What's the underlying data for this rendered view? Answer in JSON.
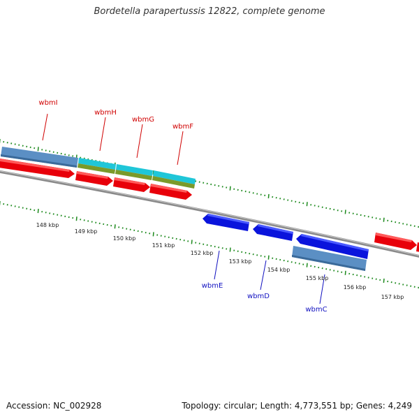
{
  "title": "Bordetella parapertussis 12822, complete genome",
  "accession": "Accession: NC_002928",
  "topology": "Topology: circular; Length: 4,773,551 bp; Genes: 4,249",
  "colors": {
    "forward_gene": "#e8000a",
    "reverse_gene": "#0a14dc",
    "steelblue_feature": "#5b8fc4",
    "cyan_feature": "#1fc6d8",
    "olive_feature": "#7a9a2a",
    "backbone": "#808080",
    "ticks": "#1e8a1e",
    "forward_label": "#d00000",
    "reverse_label": "#1010c0"
  },
  "scale_labels": [
    "148 kbp",
    "149 kbp",
    "150 kbp",
    "151 kbp",
    "152 kbp",
    "153 kbp",
    "154 kbp",
    "155 kbp",
    "156 kbp",
    "157 kbp"
  ],
  "gene_labels_forward": [
    "wbmI",
    "wbmH",
    "wbmG",
    "wbmF"
  ],
  "gene_labels_reverse": [
    "wbmE",
    "wbmD",
    "wbmC"
  ]
}
